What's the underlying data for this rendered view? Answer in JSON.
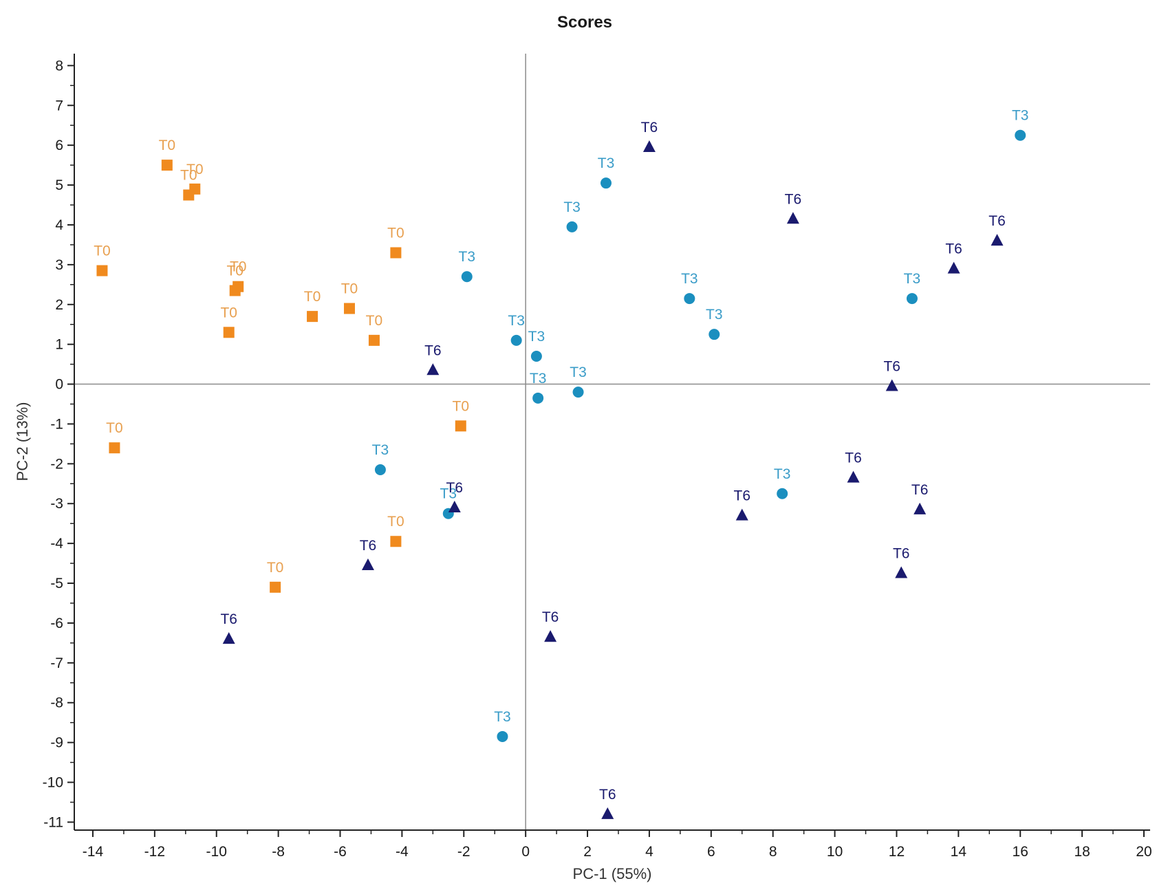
{
  "chart_data": {
    "type": "scatter",
    "title": "Scores",
    "xlabel": "PC-1 (55%)",
    "ylabel": "PC-2 (13%)",
    "xlim": [
      -14.6,
      20.2
    ],
    "ylim": [
      -11.2,
      8.3
    ],
    "xticks": [
      -14,
      -12,
      -10,
      -8,
      -6,
      -4,
      -2,
      0,
      2,
      4,
      6,
      8,
      10,
      12,
      14,
      16,
      18,
      20
    ],
    "yticks": [
      8,
      7,
      6,
      5,
      4,
      3,
      2,
      1,
      0,
      -1,
      -2,
      -3,
      -4,
      -5,
      -6,
      -7,
      -8,
      -9,
      -10,
      -11
    ],
    "reference_lines": {
      "x": 0,
      "y": 0
    },
    "legend": "none",
    "series": [
      {
        "name": "T0",
        "marker": "square",
        "color": "#F08A1E",
        "label_color": "#E8A050",
        "points": [
          {
            "x": -13.7,
            "y": 2.85,
            "label": "T0"
          },
          {
            "x": -11.6,
            "y": 5.5,
            "label": "T0"
          },
          {
            "x": -10.9,
            "y": 4.75,
            "label": "T0"
          },
          {
            "x": -10.7,
            "y": 4.9,
            "label": "T0"
          },
          {
            "x": -9.4,
            "y": 2.35,
            "label": "T0"
          },
          {
            "x": -9.3,
            "y": 2.45,
            "label": "T0"
          },
          {
            "x": -9.6,
            "y": 1.3,
            "label": "T0"
          },
          {
            "x": -6.9,
            "y": 1.7,
            "label": "T0"
          },
          {
            "x": -5.7,
            "y": 1.9,
            "label": "T0"
          },
          {
            "x": -4.2,
            "y": 3.3,
            "label": "T0"
          },
          {
            "x": -4.9,
            "y": 1.1,
            "label": "T0"
          },
          {
            "x": -13.3,
            "y": -1.6,
            "label": "T0"
          },
          {
            "x": -2.1,
            "y": -1.05,
            "label": "T0"
          },
          {
            "x": -4.2,
            "y": -3.95,
            "label": "T0"
          },
          {
            "x": -8.1,
            "y": -5.1,
            "label": "T0"
          }
        ]
      },
      {
        "name": "T3",
        "marker": "circle",
        "color": "#1B8FBF",
        "label_color": "#3A9CC8",
        "points": [
          {
            "x": 16.0,
            "y": 6.25,
            "label": "T3"
          },
          {
            "x": 2.6,
            "y": 5.05,
            "label": "T3"
          },
          {
            "x": 1.5,
            "y": 3.95,
            "label": "T3"
          },
          {
            "x": -1.9,
            "y": 2.7,
            "label": "T3"
          },
          {
            "x": 5.3,
            "y": 2.15,
            "label": "T3"
          },
          {
            "x": 12.5,
            "y": 2.15,
            "label": "T3"
          },
          {
            "x": 6.1,
            "y": 1.25,
            "label": "T3"
          },
          {
            "x": -0.3,
            "y": 1.1,
            "label": "T3"
          },
          {
            "x": 0.35,
            "y": 0.7,
            "label": "T3"
          },
          {
            "x": 0.4,
            "y": -0.35,
            "label": "T3"
          },
          {
            "x": 1.7,
            "y": -0.2,
            "label": "T3"
          },
          {
            "x": -4.7,
            "y": -2.15,
            "label": "T3"
          },
          {
            "x": -2.5,
            "y": -3.25,
            "label": "T3"
          },
          {
            "x": 8.3,
            "y": -2.75,
            "label": "T3"
          },
          {
            "x": -0.75,
            "y": -8.85,
            "label": "T3"
          }
        ]
      },
      {
        "name": "T6",
        "marker": "triangle",
        "color": "#1A1A6E",
        "label_color": "#1A1A6E",
        "points": [
          {
            "x": 4.0,
            "y": 5.95,
            "label": "T6"
          },
          {
            "x": 8.65,
            "y": 4.15,
            "label": "T6"
          },
          {
            "x": 15.25,
            "y": 3.6,
            "label": "T6"
          },
          {
            "x": 13.85,
            "y": 2.9,
            "label": "T6"
          },
          {
            "x": -3.0,
            "y": 0.35,
            "label": "T6"
          },
          {
            "x": 11.85,
            "y": -0.05,
            "label": "T6"
          },
          {
            "x": 10.6,
            "y": -2.35,
            "label": "T6"
          },
          {
            "x": 12.75,
            "y": -3.15,
            "label": "T6"
          },
          {
            "x": 7.0,
            "y": -3.3,
            "label": "T6"
          },
          {
            "x": -2.3,
            "y": -3.1,
            "label": "T6"
          },
          {
            "x": -5.1,
            "y": -4.55,
            "label": "T6"
          },
          {
            "x": 12.15,
            "y": -4.75,
            "label": "T6"
          },
          {
            "x": -9.6,
            "y": -6.4,
            "label": "T6"
          },
          {
            "x": 0.8,
            "y": -6.35,
            "label": "T6"
          },
          {
            "x": 2.65,
            "y": -10.8,
            "label": "T6"
          }
        ]
      }
    ]
  }
}
